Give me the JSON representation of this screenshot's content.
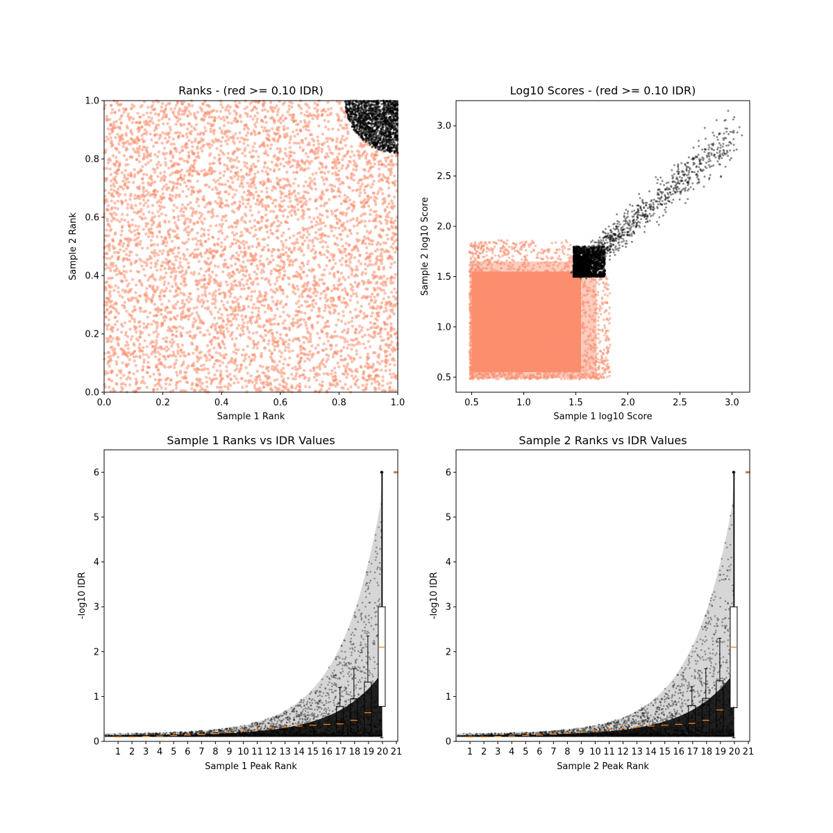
{
  "colors": {
    "pass": "#000000",
    "fail": "#fa8e6e",
    "median": "#ff7f0e"
  },
  "chart_data": [
    {
      "type": "scatter",
      "title": "Ranks - (red >= 0.10 IDR)",
      "xlabel": "Sample 1 Rank",
      "ylabel": "Sample 2 Rank",
      "xlim": [
        0.0,
        1.0
      ],
      "ylim": [
        0.0,
        1.0
      ],
      "xticks": [
        "0.0",
        "0.2",
        "0.4",
        "0.6",
        "0.8",
        "1.0"
      ],
      "yticks": [
        "0.0",
        "0.2",
        "0.4",
        "0.6",
        "0.8",
        "1.0"
      ],
      "regions": {
        "fail": "uniform cloud covering [0,1]x[0,1]",
        "pass_corner": [
          1.0,
          1.0
        ],
        "pass_radius": 0.18
      }
    },
    {
      "type": "scatter",
      "title": "Log10 Scores - (red >= 0.10 IDR)",
      "xlabel": "Sample 1 log10 Score",
      "ylabel": "Sample 2 log10 Score",
      "xlim": [
        0.35,
        3.17
      ],
      "ylim": [
        0.35,
        3.25
      ],
      "xticks": [
        "0.5",
        "1.0",
        "1.5",
        "2.0",
        "2.5",
        "3.0"
      ],
      "yticks": [
        "0.5",
        "1.0",
        "1.5",
        "2.0",
        "2.5",
        "3.0"
      ],
      "regions": {
        "fail": "dense cloud x 0.48-1.8, y 0.48-1.85",
        "pass_start": [
          1.6,
          1.6
        ],
        "pass_end": [
          3.0,
          2.95
        ]
      }
    },
    {
      "type": "box",
      "title": "Sample 1 Ranks vs IDR Values",
      "xlabel": "Sample 1 Peak Rank",
      "ylabel": "-log10 IDR",
      "ylim": [
        0,
        6.5
      ],
      "xticks": [
        "1",
        "2",
        "3",
        "4",
        "5",
        "6",
        "7",
        "8",
        "9",
        "10",
        "11",
        "12",
        "13",
        "14",
        "15",
        "16",
        "17",
        "18",
        "19",
        "20",
        "21"
      ],
      "yticks": [
        "0",
        "1",
        "2",
        "3",
        "4",
        "5",
        "6"
      ],
      "boxes": [
        {
          "pos": 16.95,
          "q1": 0.2,
          "median": 0.39,
          "q3": 0.78,
          "whisker_high": 1.2
        },
        {
          "pos": 17.95,
          "q1": 0.2,
          "median": 0.47,
          "q3": 0.95,
          "whisker_high": 1.62
        },
        {
          "pos": 18.95,
          "q1": 0.2,
          "median": 0.64,
          "q3": 1.32,
          "whisker_high": 2.35
        },
        {
          "pos": 19.95,
          "q1": 0.78,
          "median": 2.1,
          "q3": 3.0,
          "whisker_high": 6.0
        }
      ],
      "medians_low": [
        0.1,
        0.1,
        0.11,
        0.12,
        0.13,
        0.14,
        0.15,
        0.17,
        0.2,
        0.24,
        0.27,
        0.3,
        0.32,
        0.34,
        0.36,
        0.38
      ],
      "outlier_at_21": 6.0
    },
    {
      "type": "box",
      "title": "Sample 2 Ranks vs IDR Values",
      "xlabel": "Sample 2 Peak Rank",
      "ylabel": "-log10 IDR",
      "ylim": [
        0,
        6.5
      ],
      "xticks": [
        "1",
        "2",
        "3",
        "4",
        "5",
        "6",
        "7",
        "8",
        "9",
        "10",
        "11",
        "12",
        "13",
        "14",
        "15",
        "16",
        "17",
        "18",
        "19",
        "20",
        "21"
      ],
      "yticks": [
        "0",
        "1",
        "2",
        "3",
        "4",
        "5",
        "6"
      ],
      "boxes": [
        {
          "pos": 16.95,
          "q1": 0.2,
          "median": 0.4,
          "q3": 0.8,
          "whisker_high": 1.22
        },
        {
          "pos": 17.95,
          "q1": 0.2,
          "median": 0.47,
          "q3": 0.96,
          "whisker_high": 1.62
        },
        {
          "pos": 18.95,
          "q1": 0.2,
          "median": 0.7,
          "q3": 1.35,
          "whisker_high": 2.3
        },
        {
          "pos": 19.95,
          "q1": 0.75,
          "median": 2.1,
          "q3": 3.0,
          "whisker_high": 6.0
        }
      ],
      "medians_low": [
        0.1,
        0.1,
        0.11,
        0.12,
        0.13,
        0.14,
        0.16,
        0.18,
        0.21,
        0.24,
        0.27,
        0.29,
        0.32,
        0.34,
        0.36,
        0.38
      ],
      "outlier_at_21": 6.0
    }
  ]
}
